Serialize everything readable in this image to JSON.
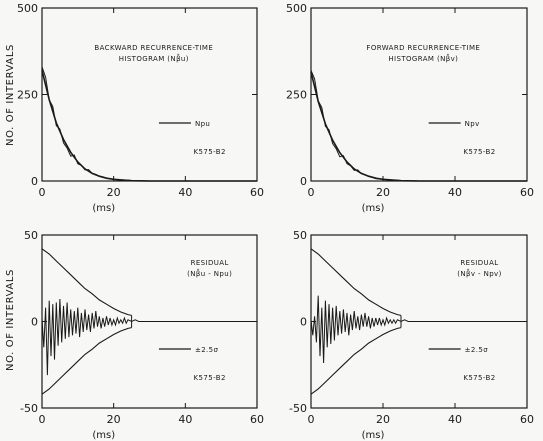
{
  "figure": {
    "ylabel": "NO. OF INTERVALS",
    "colors": {
      "ink": "#1a1a1a",
      "paper": "#f7f7f5"
    }
  },
  "chart_data": [
    {
      "type": "line",
      "panel": "top-left",
      "title": "BACKWARD RECURRENCE-TIME",
      "subtitle": "HISTOGRAM (Nβ̂u)",
      "xlabel": "(ms)",
      "ylabel": "NO. OF INTERVALS",
      "xlim": [
        0,
        60
      ],
      "ylim": [
        0,
        500
      ],
      "xticks": [
        "0",
        "20",
        "40",
        "60"
      ],
      "yticks": [
        "0",
        "250",
        "500"
      ],
      "legend": "Npu",
      "id_label": "K575-B2",
      "grid": false,
      "series": [
        {
          "values_x": [
            0,
            2,
            4,
            6,
            8,
            10,
            12,
            14,
            16,
            18,
            20,
            25,
            30,
            40,
            60
          ],
          "values_y": [
            320,
            235,
            168,
            120,
            83,
            55,
            35,
            22,
            14,
            8,
            5,
            1,
            0,
            0,
            0
          ]
        },
        {
          "values_x": [
            0,
            1,
            2,
            3,
            4,
            5,
            6,
            7,
            8,
            9,
            10,
            11,
            12,
            13,
            14,
            15,
            16,
            17,
            18,
            19,
            20,
            22,
            24,
            26,
            28,
            30,
            35,
            40,
            60
          ],
          "values_y": [
            330,
            300,
            235,
            215,
            160,
            150,
            110,
            95,
            72,
            75,
            50,
            45,
            32,
            33,
            22,
            19,
            14,
            12,
            8,
            7,
            5,
            3,
            2,
            1,
            1,
            0,
            0,
            0,
            0
          ]
        }
      ]
    },
    {
      "type": "line",
      "panel": "top-right",
      "title": "FORWARD RECURRENCE-TIME",
      "subtitle": "HISTOGRAM (Nβ̂v)",
      "xlabel": "(ms)",
      "ylabel": "",
      "xlim": [
        0,
        60
      ],
      "ylim": [
        0,
        500
      ],
      "xticks": [
        "0",
        "20",
        "40",
        "60"
      ],
      "yticks": [
        "0",
        "250",
        "500"
      ],
      "legend": "Npv",
      "id_label": "K575-B2",
      "grid": false,
      "series": [
        {
          "values_x": [
            0,
            2,
            4,
            6,
            8,
            10,
            12,
            14,
            16,
            18,
            20,
            25,
            30,
            40,
            60
          ],
          "values_y": [
            315,
            230,
            165,
            118,
            82,
            55,
            35,
            22,
            14,
            8,
            5,
            1,
            0,
            0,
            0
          ]
        },
        {
          "values_x": [
            0,
            1,
            2,
            3,
            4,
            5,
            6,
            7,
            8,
            9,
            10,
            11,
            12,
            13,
            14,
            15,
            16,
            17,
            18,
            19,
            20,
            22,
            24,
            26,
            28,
            30,
            35,
            40,
            60
          ],
          "values_y": [
            320,
            295,
            232,
            212,
            158,
            148,
            108,
            93,
            70,
            73,
            50,
            44,
            31,
            32,
            21,
            18,
            13,
            11,
            7,
            6,
            5,
            3,
            2,
            1,
            1,
            0,
            0,
            0,
            0
          ]
        }
      ]
    },
    {
      "type": "line",
      "panel": "bottom-left",
      "title": "RESIDUAL",
      "subtitle": "(Nβ̂u - Npu)",
      "xlabel": "(ms)",
      "ylabel": "NO. OF INTERVALS",
      "xlim": [
        0,
        60
      ],
      "ylim": [
        -50,
        50
      ],
      "xticks": [
        "0",
        "20",
        "40",
        "60"
      ],
      "yticks": [
        "-50",
        "0",
        "50"
      ],
      "legend": "±2.5σ",
      "id_label": "K575-B2",
      "grid": false,
      "envelope": {
        "x": [
          0,
          2,
          4,
          6,
          8,
          10,
          12,
          14,
          16,
          18,
          20,
          22,
          24,
          25
        ],
        "y": [
          42,
          39,
          35,
          31,
          27,
          23,
          19,
          16,
          12.5,
          10,
          7.5,
          5.5,
          4,
          3.5
        ]
      },
      "residual": {
        "x": [
          0,
          0.5,
          1,
          1.5,
          2,
          2.5,
          3,
          3.5,
          4,
          4.5,
          5,
          5.5,
          6,
          6.5,
          7,
          7.5,
          8,
          8.5,
          9,
          9.5,
          10,
          10.5,
          11,
          11.5,
          12,
          12.5,
          13,
          13.5,
          14,
          14.5,
          15,
          15.5,
          16,
          16.5,
          17,
          17.5,
          18,
          18.5,
          19,
          19.5,
          20,
          20.5,
          21,
          21.5,
          22,
          22.5,
          23,
          23.5,
          24,
          25,
          26,
          27,
          28,
          29,
          30,
          60
        ],
        "y": [
          2,
          -15,
          8,
          -31,
          12,
          -20,
          10,
          -22,
          11,
          -14,
          13,
          -12,
          9,
          -10,
          11,
          -9,
          7,
          -8,
          6,
          -7,
          8,
          -9,
          5,
          -6,
          7,
          -5,
          4,
          -6,
          5,
          -4,
          6,
          -3,
          3,
          -4,
          2,
          -3,
          3,
          -2,
          2,
          -2,
          1,
          -2,
          2,
          -1,
          1,
          -1,
          2,
          -1,
          1,
          0,
          1,
          0,
          0,
          0,
          0,
          0
        ]
      }
    },
    {
      "type": "line",
      "panel": "bottom-right",
      "title": "RESIDUAL",
      "subtitle": "(Nβ̂v - Npv)",
      "xlabel": "(ms)",
      "ylabel": "",
      "xlim": [
        0,
        60
      ],
      "ylim": [
        -50,
        50
      ],
      "xticks": [
        "0",
        "20",
        "40",
        "60"
      ],
      "yticks": [
        "-50",
        "0",
        "50"
      ],
      "legend": "±2.5σ",
      "id_label": "K575-B2",
      "grid": false,
      "envelope": {
        "x": [
          0,
          2,
          4,
          6,
          8,
          10,
          12,
          14,
          16,
          18,
          20,
          22,
          24,
          25
        ],
        "y": [
          42,
          39,
          35,
          31,
          27,
          23,
          19,
          16,
          12.5,
          10,
          7.5,
          5.5,
          4,
          3.5
        ]
      },
      "residual": {
        "x": [
          0,
          0.5,
          1,
          1.5,
          2,
          2.5,
          3,
          3.5,
          4,
          4.5,
          5,
          5.5,
          6,
          6.5,
          7,
          7.5,
          8,
          8.5,
          9,
          9.5,
          10,
          10.5,
          11,
          11.5,
          12,
          12.5,
          13,
          13.5,
          14,
          14.5,
          15,
          15.5,
          16,
          16.5,
          17,
          17.5,
          18,
          18.5,
          19,
          19.5,
          20,
          20.5,
          21,
          21.5,
          22,
          22.5,
          23,
          23.5,
          24,
          25,
          26,
          27,
          28,
          29,
          30,
          60
        ],
        "y": [
          1,
          -8,
          3,
          -12,
          15,
          -20,
          8,
          -24,
          12,
          -15,
          10,
          -13,
          8,
          -11,
          9,
          -8,
          6,
          -7,
          7,
          -6,
          5,
          -8,
          4,
          -5,
          6,
          -4,
          3,
          -5,
          4,
          -3,
          5,
          -3,
          3,
          -4,
          2,
          -3,
          2,
          -2,
          2,
          -2,
          1,
          -2,
          2,
          -1,
          1,
          -1,
          1,
          -1,
          1,
          0,
          1,
          0,
          0,
          0,
          0,
          0
        ]
      }
    }
  ]
}
